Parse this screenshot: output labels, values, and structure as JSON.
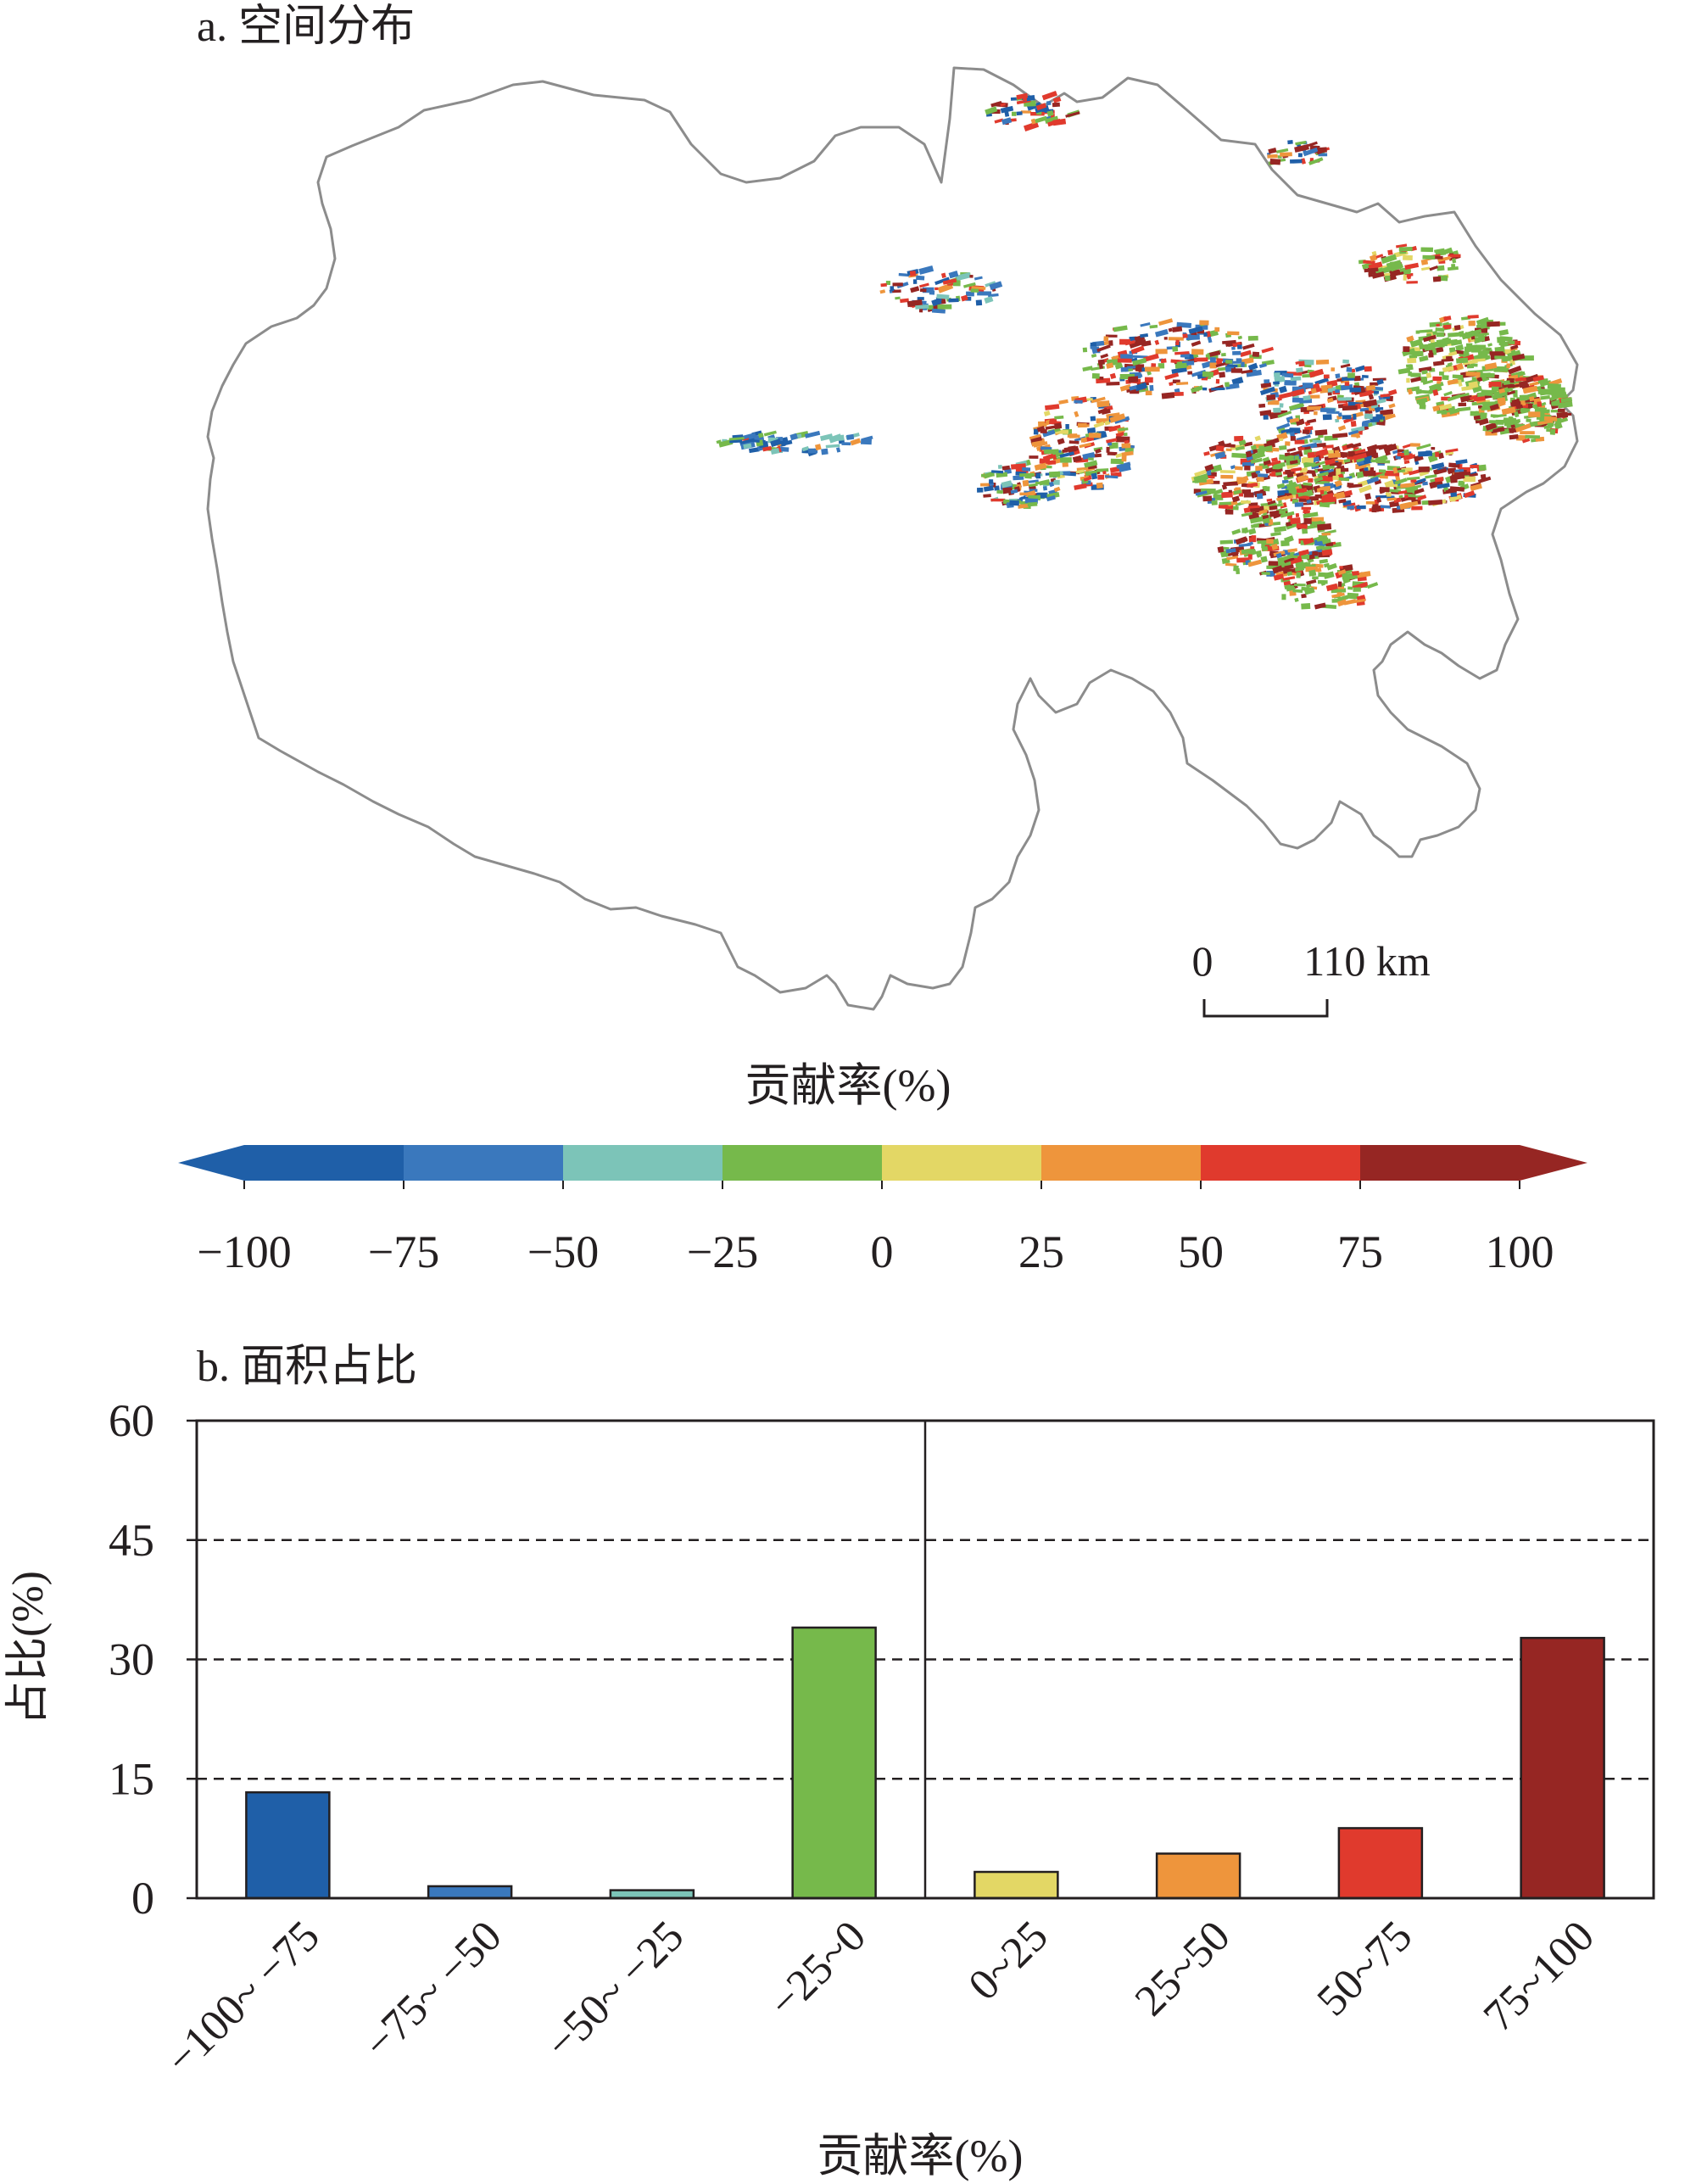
{
  "panel_a": {
    "title": "a. 空间分布",
    "scale_bar": {
      "zero_label": "0",
      "distance_label": "110 km"
    },
    "map_colors": [
      "#1f5fa8",
      "#3a78bd",
      "#7cc4b8",
      "#76b94b",
      "#e3d765",
      "#ee953c",
      "#e03a2d",
      "#962623"
    ]
  },
  "colorbar": {
    "title": "贡献率(%)",
    "tick_labels": [
      "−100",
      "−75",
      "−50",
      "−25",
      "0",
      "25",
      "50",
      "75",
      "100"
    ],
    "colors": [
      "#1f5fa8",
      "#3a78bd",
      "#7cc4b8",
      "#76b94b",
      "#e3d765",
      "#ee953c",
      "#e03a2d",
      "#962623"
    ]
  },
  "chart_data": {
    "type": "bar",
    "title": "b. 面积占比",
    "xlabel": "贡献率(%)",
    "ylabel": "占比(%)",
    "categories": [
      "−100~ −75",
      "−75~ −50",
      "−50~ −25",
      "−25~0",
      "0~25",
      "25~50",
      "50~75",
      "75~100"
    ],
    "values": [
      13.3,
      1.5,
      1.0,
      34.0,
      3.3,
      5.6,
      8.8,
      32.7
    ],
    "colors": [
      "#1f5fa8",
      "#3a78bd",
      "#7cc4b8",
      "#76b94b",
      "#e3d765",
      "#ee953c",
      "#e03a2d",
      "#962623"
    ],
    "ylim": [
      0,
      60
    ],
    "yticks": [
      0,
      15,
      30,
      45,
      60
    ],
    "grid": "dashed horizontal at 15, 30, 45",
    "divider_after_category": "−25~0"
  }
}
